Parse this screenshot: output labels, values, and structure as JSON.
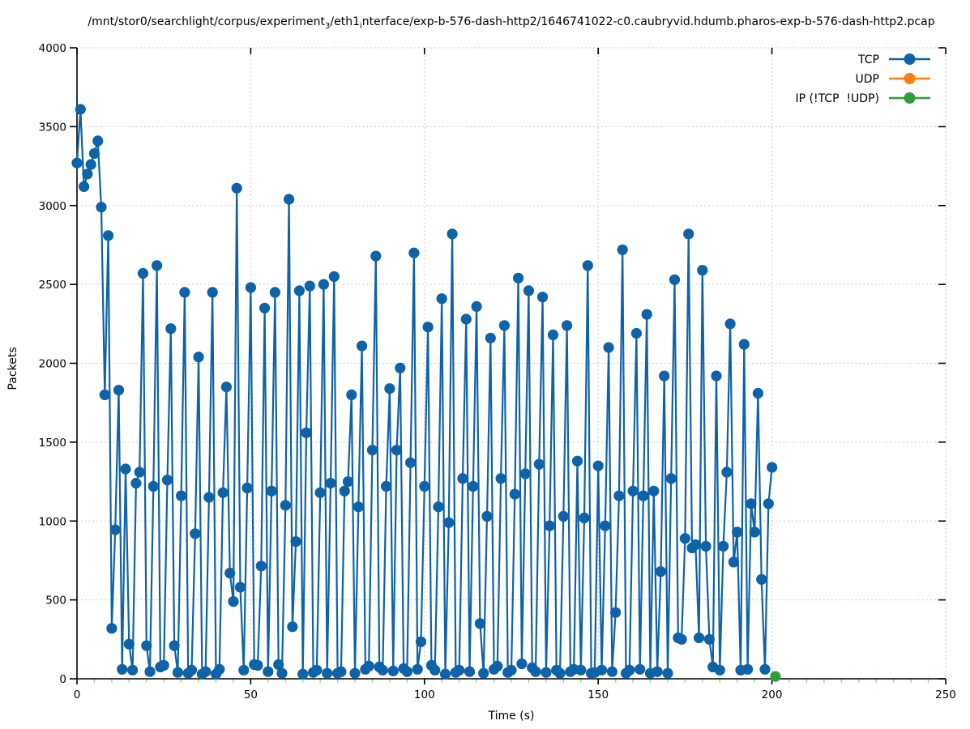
{
  "title": {
    "parts": [
      {
        "text": "/mnt/stor0/searchlight/corpus/experiment",
        "subscript": false
      },
      {
        "text": "3",
        "subscript": true
      },
      {
        "text": "/eth1",
        "subscript": false
      },
      {
        "text": "i",
        "subscript": true
      },
      {
        "text": "nterface/exp-b-576-dash-http2/1646741022-c0.caubryvid.hdumb.pharos-exp-b-576-dash-http2.pcap",
        "subscript": false
      }
    ]
  },
  "chart_data": {
    "type": "line",
    "style": "linespoints",
    "xlabel": "Time (s)",
    "ylabel": "Packets",
    "xlim": [
      0,
      250
    ],
    "ylim": [
      0,
      4000
    ],
    "x_major_ticks": [
      0,
      50,
      100,
      150,
      200,
      250
    ],
    "x_minor_tick_step": 5,
    "y_major_ticks": [
      0,
      500,
      1000,
      1500,
      2000,
      2500,
      3000,
      3500,
      4000
    ],
    "grid": "dotted",
    "legend_position": "top-right-inside",
    "colors": {
      "axis": "#000000",
      "grid": "#bdbdbd",
      "minor_tick": "#9fd49f",
      "tcp": "#0d62a8",
      "udp": "#ff7f0e",
      "ip_other": "#2e9e3c"
    },
    "series": [
      {
        "name": "TCP",
        "color": "#0d62a8",
        "marker": "circle",
        "x_start": 0,
        "x_step": 1,
        "y": [
          3270,
          3610,
          3120,
          3200,
          3260,
          3330,
          3410,
          2990,
          1800,
          2810,
          320,
          945,
          1830,
          60,
          1330,
          220,
          55,
          1240,
          1310,
          2570,
          210,
          45,
          1220,
          2620,
          75,
          85,
          1260,
          2220,
          210,
          40,
          1160,
          2450,
          35,
          55,
          920,
          2040,
          30,
          45,
          1150,
          2450,
          30,
          60,
          1180,
          1850,
          670,
          490,
          3110,
          580,
          55,
          1210,
          2480,
          90,
          85,
          715,
          2350,
          45,
          1190,
          2450,
          90,
          35,
          1100,
          3040,
          330,
          870,
          2460,
          30,
          1560,
          2490,
          40,
          55,
          1180,
          2500,
          35,
          1240,
          2550,
          35,
          45,
          1190,
          1250,
          1800,
          35,
          1090,
          2110,
          60,
          80,
          1450,
          2680,
          75,
          55,
          1220,
          1840,
          50,
          1450,
          1970,
          65,
          45,
          1370,
          2700,
          60,
          235,
          1220,
          2230,
          85,
          55,
          1090,
          2410,
          30,
          990,
          2820,
          40,
          55,
          1270,
          2280,
          45,
          1220,
          2360,
          350,
          35,
          1030,
          2160,
          60,
          80,
          1270,
          2240,
          40,
          55,
          1170,
          2540,
          95,
          1300,
          2460,
          70,
          45,
          1360,
          2420,
          40,
          970,
          2180,
          55,
          35,
          1030,
          2240,
          45,
          60,
          1380,
          55,
          1020,
          2620,
          35,
          40,
          1350,
          55,
          970,
          2100,
          45,
          420,
          1160,
          2720,
          35,
          55,
          1190,
          2190,
          60,
          1160,
          2310,
          35,
          1190,
          45,
          680,
          1920,
          35,
          1270,
          2530,
          260,
          250,
          890,
          2820,
          830,
          850,
          260,
          2590,
          840,
          250,
          75,
          1920,
          55,
          840,
          1310,
          2250,
          740,
          930,
          55,
          2120,
          60,
          1110,
          930,
          1810,
          630,
          60,
          1110,
          1340
        ]
      },
      {
        "name": "UDP",
        "color": "#ff7f0e",
        "marker": "circle",
        "x": [],
        "y": []
      },
      {
        "name": "IP (!TCP  !UDP)",
        "color": "#2e9e3c",
        "marker": "circle",
        "x": [
          201
        ],
        "y": [
          15
        ]
      }
    ]
  }
}
